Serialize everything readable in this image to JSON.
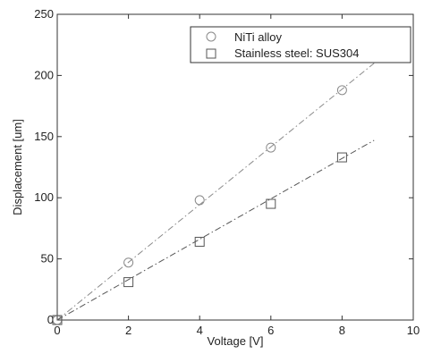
{
  "chart_data": {
    "type": "scatter",
    "title": "",
    "xlabel": "Voltage [V]",
    "ylabel": "Displacement [um]",
    "xlim": [
      0,
      10
    ],
    "ylim": [
      0,
      250
    ],
    "xticks": [
      "0",
      "2",
      "4",
      "6",
      "8",
      "10"
    ],
    "yticks": [
      "0",
      "50",
      "100",
      "150",
      "200",
      "250"
    ],
    "grid": false,
    "legend_position": "top-right",
    "series": [
      {
        "name": "NiTi alloy",
        "marker": "circle",
        "color": "#8a8a8a",
        "x": [
          0,
          2,
          4,
          6,
          8
        ],
        "y": [
          0,
          47,
          98,
          141,
          188
        ],
        "fit": {
          "x": [
            0,
            8.9
          ],
          "y": [
            0,
            210
          ]
        }
      },
      {
        "name": "Stainless steel: SUS304",
        "marker": "square",
        "color": "#555555",
        "x": [
          0,
          2,
          4,
          6,
          8
        ],
        "y": [
          0,
          31,
          64,
          95,
          133
        ],
        "fit": {
          "x": [
            0,
            8.9
          ],
          "y": [
            0,
            147
          ]
        }
      }
    ]
  }
}
